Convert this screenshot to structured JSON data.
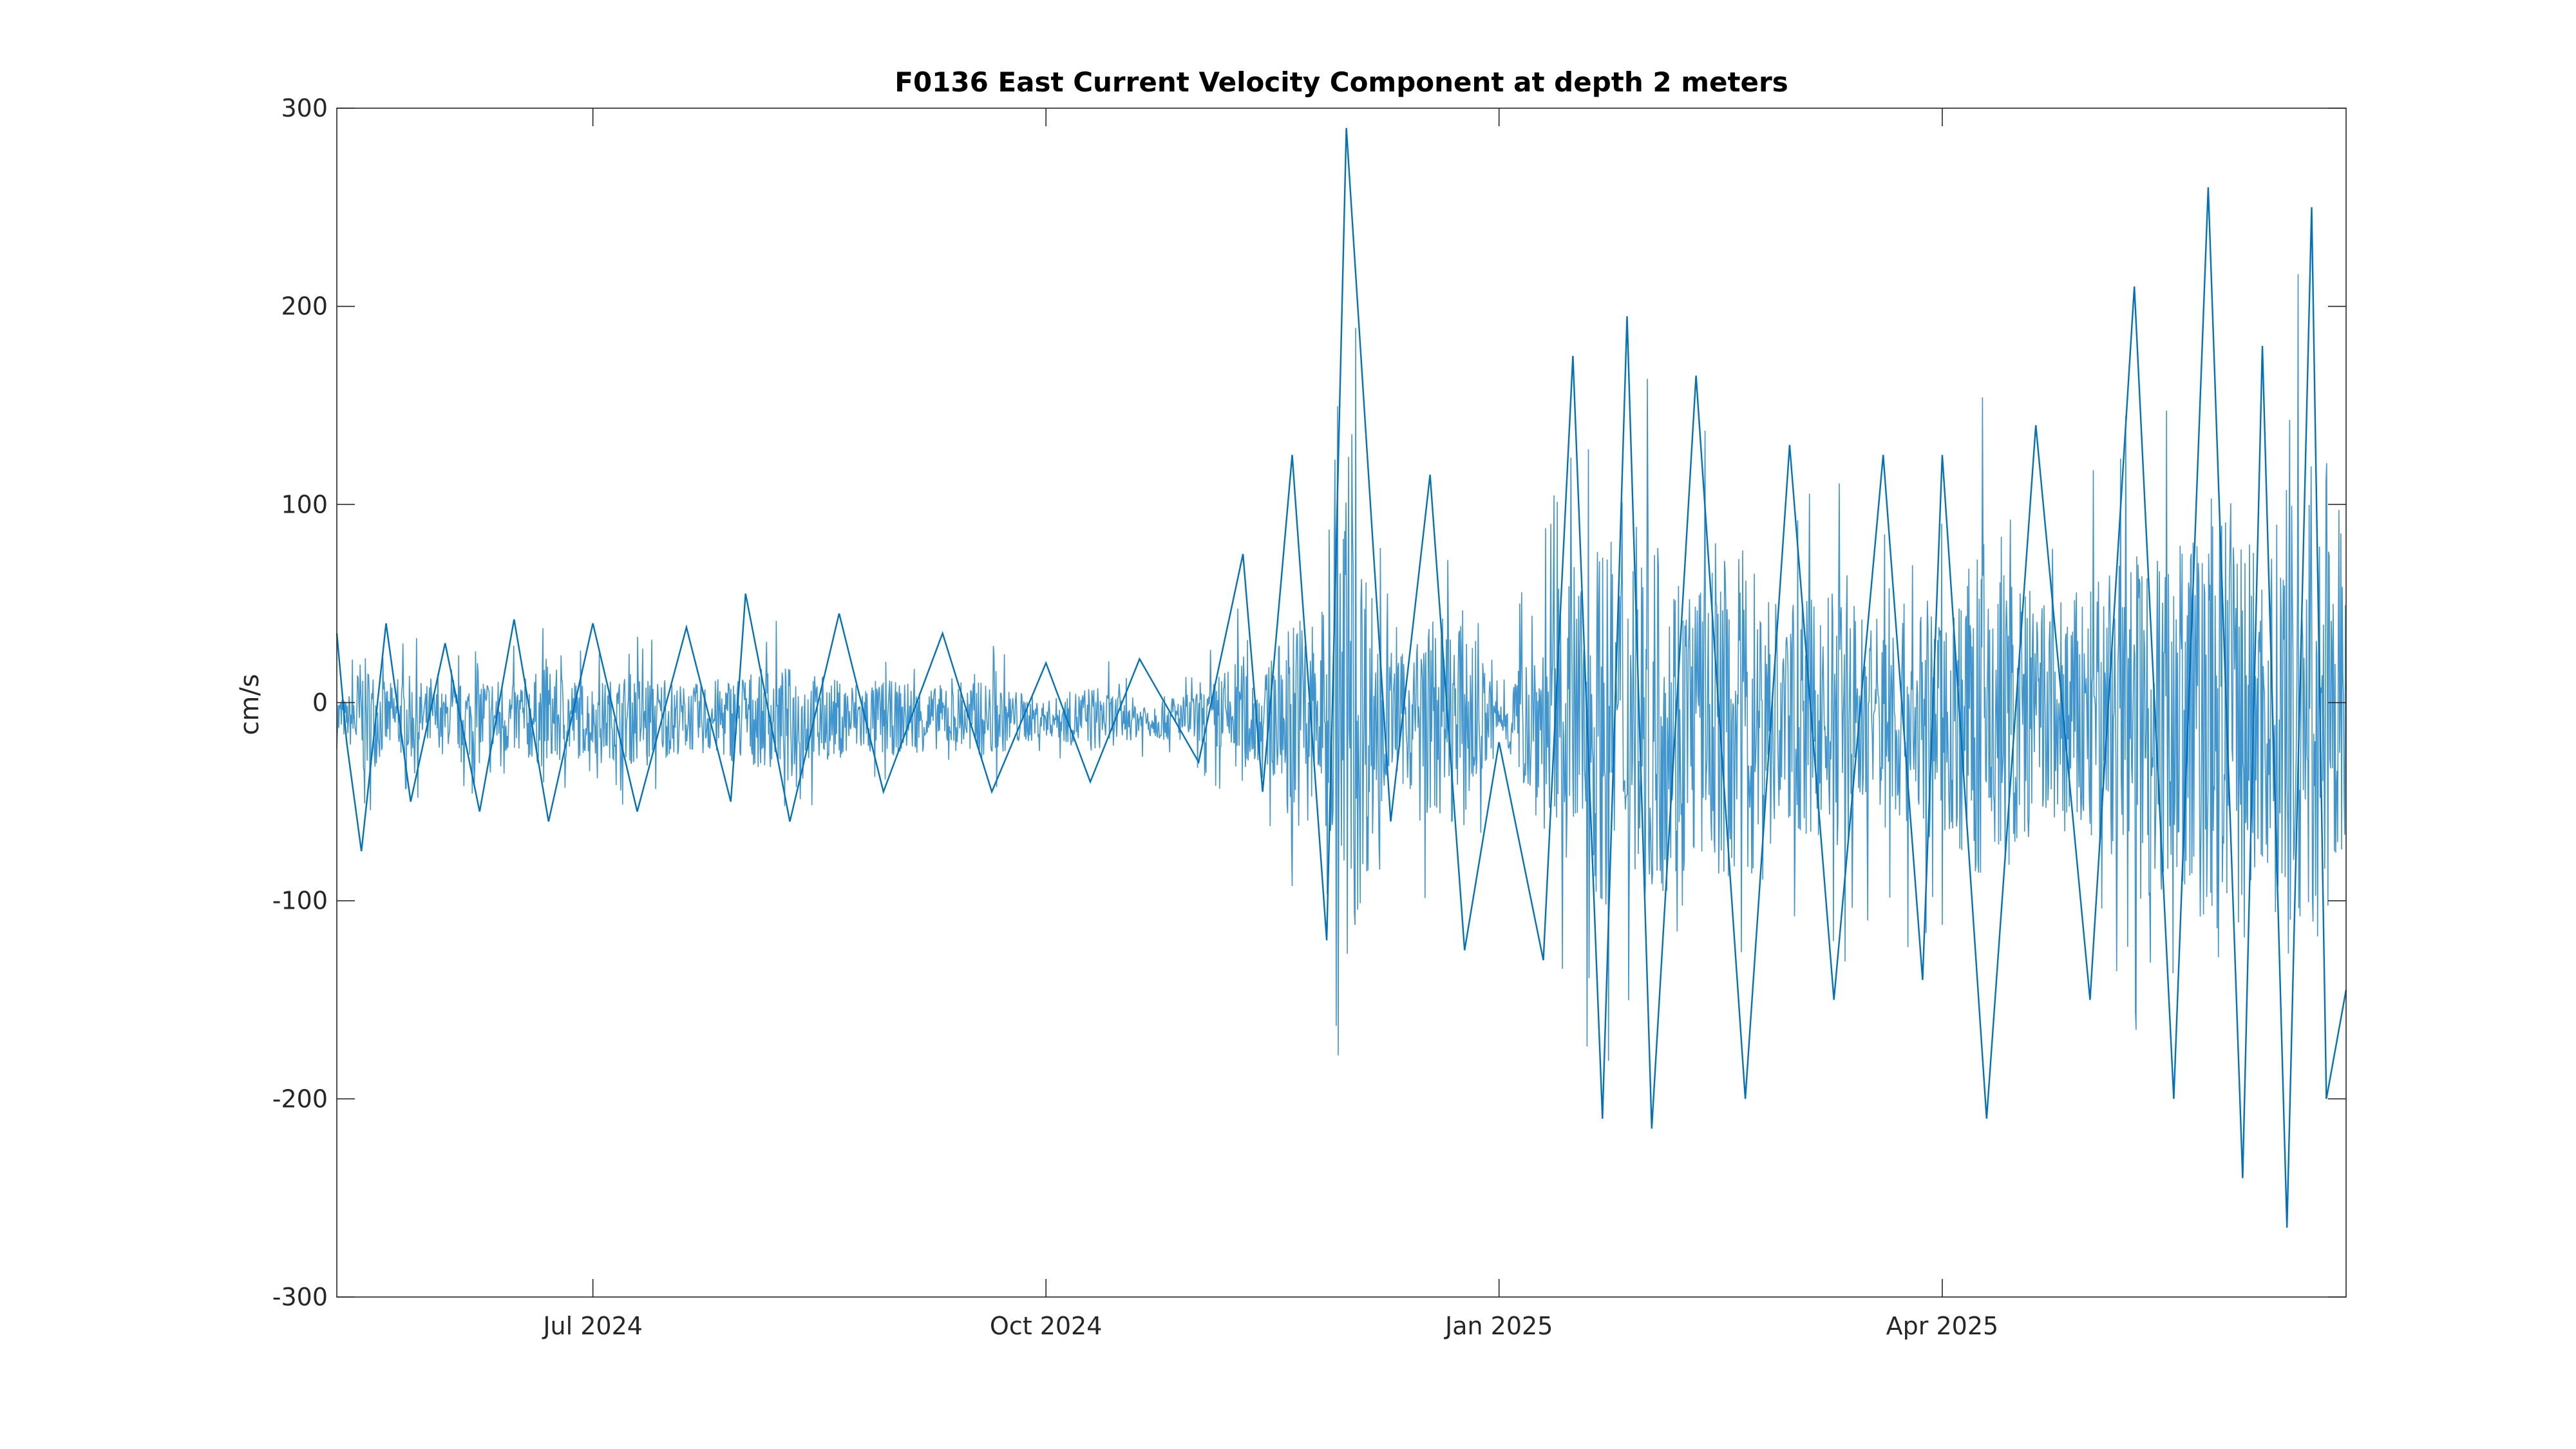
{
  "chart_data": {
    "type": "line",
    "title": "F0136 East Current Velocity Component at depth 2 meters",
    "xlabel": "",
    "ylabel": "cm/s",
    "x_range": [
      "2024-05-10",
      "2025-06-22"
    ],
    "ylim": [
      -300,
      300
    ],
    "y_ticks": [
      -300,
      -200,
      -100,
      0,
      100,
      200,
      300
    ],
    "y_tick_labels": [
      "-300",
      "-200",
      "-100",
      "0",
      "100",
      "200",
      "300"
    ],
    "x_ticks": [
      {
        "date": "2024-07-01",
        "label": "Jul 2024"
      },
      {
        "date": "2024-10-01",
        "label": "Oct 2024"
      },
      {
        "date": "2025-01-01",
        "label": "Jan 2025"
      },
      {
        "date": "2025-04-01",
        "label": "Apr 2025"
      }
    ],
    "grid": false,
    "line_color": "#0072BD",
    "series": [
      {
        "x": [
          "2024-05-10",
          "2024-05-12",
          "2024-05-15",
          "2024-05-20",
          "2024-05-25",
          "2024-06-01",
          "2024-06-08",
          "2024-06-15",
          "2024-06-22",
          "2024-07-01",
          "2024-07-10",
          "2024-07-20",
          "2024-07-29",
          "2024-08-01",
          "2024-08-10",
          "2024-08-20",
          "2024-08-29",
          "2024-09-10",
          "2024-09-20",
          "2024-10-01",
          "2024-10-10",
          "2024-10-20",
          "2024-11-01",
          "2024-11-10",
          "2024-11-14",
          "2024-11-20",
          "2024-11-27",
          "2024-12-01",
          "2024-12-10",
          "2024-12-18",
          "2024-12-25",
          "2025-01-01",
          "2025-01-10",
          "2025-01-16",
          "2025-01-22",
          "2025-01-27",
          "2025-02-01",
          "2025-02-10",
          "2025-02-20",
          "2025-03-01",
          "2025-03-10",
          "2025-03-20",
          "2025-03-28",
          "2025-04-01",
          "2025-04-10",
          "2025-04-20",
          "2025-05-01",
          "2025-05-10",
          "2025-05-18",
          "2025-05-25",
          "2025-06-01",
          "2025-06-05",
          "2025-06-10",
          "2025-06-15",
          "2025-06-18",
          "2025-06-22"
        ],
        "values": [
          35,
          -20,
          -75,
          40,
          -50,
          30,
          -55,
          42,
          -60,
          40,
          -55,
          38,
          -50,
          55,
          -60,
          45,
          -45,
          35,
          -45,
          20,
          -40,
          22,
          -30,
          75,
          -45,
          125,
          -120,
          290,
          -60,
          115,
          -125,
          -20,
          -130,
          175,
          -210,
          195,
          -215,
          165,
          -200,
          130,
          -150,
          125,
          -140,
          125,
          -210,
          140,
          -150,
          210,
          -200,
          260,
          -240,
          180,
          -265,
          250,
          -200,
          -145
        ]
      }
    ]
  }
}
